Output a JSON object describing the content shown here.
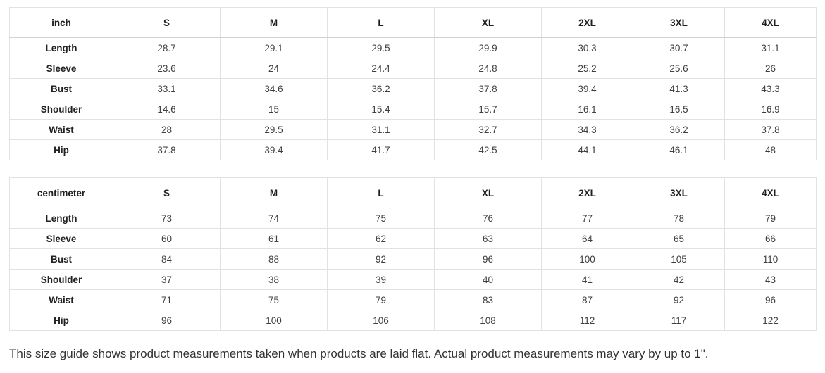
{
  "chart_data": [
    {
      "type": "table",
      "title": "inch",
      "columns": [
        "inch",
        "S",
        "M",
        "L",
        "XL",
        "2XL",
        "3XL",
        "4XL"
      ],
      "rows": [
        [
          "Length",
          28.7,
          29.1,
          29.5,
          29.9,
          30.3,
          30.7,
          31.1
        ],
        [
          "Sleeve",
          23.6,
          24,
          24.4,
          24.8,
          25.2,
          25.6,
          26
        ],
        [
          "Bust",
          33.1,
          34.6,
          36.2,
          37.8,
          39.4,
          41.3,
          43.3
        ],
        [
          "Shoulder",
          14.6,
          15,
          15.4,
          15.7,
          16.1,
          16.5,
          16.9
        ],
        [
          "Waist",
          28,
          29.5,
          31.1,
          32.7,
          34.3,
          36.2,
          37.8
        ],
        [
          "Hip",
          37.8,
          39.4,
          41.7,
          42.5,
          44.1,
          46.1,
          48
        ]
      ]
    },
    {
      "type": "table",
      "title": "centimeter",
      "columns": [
        "centimeter",
        "S",
        "M",
        "L",
        "XL",
        "2XL",
        "3XL",
        "4XL"
      ],
      "rows": [
        [
          "Length",
          73,
          74,
          75,
          76,
          77,
          78,
          79
        ],
        [
          "Sleeve",
          60,
          61,
          62,
          63,
          64,
          65,
          66
        ],
        [
          "Bust",
          84,
          88,
          92,
          96,
          100,
          105,
          110
        ],
        [
          "Shoulder",
          37,
          38,
          39,
          40,
          41,
          42,
          43
        ],
        [
          "Waist",
          71,
          75,
          79,
          83,
          87,
          92,
          96
        ],
        [
          "Hip",
          96,
          100,
          106,
          108,
          112,
          117,
          122
        ]
      ]
    }
  ],
  "footer_note": "This size guide shows product measurements taken when products are laid flat. Actual product measurements may vary by up to 1\".",
  "colors": {
    "background": "#ffffff",
    "border": "#e2e2e2",
    "header_border": "#d2d2d2",
    "heading_text": "#1f1f1f",
    "cell_text": "#3e3e3e",
    "note_text": "#333333"
  }
}
